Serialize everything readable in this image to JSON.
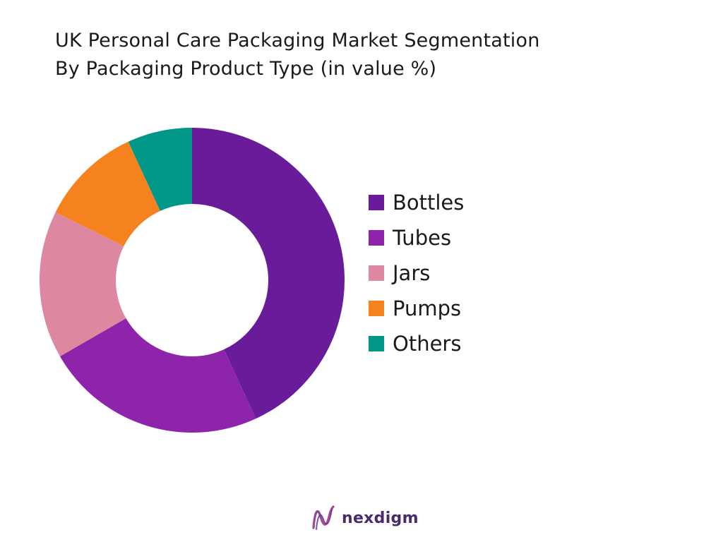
{
  "chart_data": {
    "type": "donut",
    "title_lines": [
      "UK Personal Care Packaging Market Segmentation",
      "By Packaging Product Type (in value %)"
    ],
    "categories": [
      "Bottles",
      "Tubes",
      "Jars",
      "Pumps",
      "Others"
    ],
    "values": [
      44,
      24,
      16,
      11,
      7
    ],
    "colors": [
      "#6a1b9a",
      "#8e24aa",
      "#de87a0",
      "#f5821f",
      "#009688"
    ],
    "legend_position": "right",
    "start_angle_deg": 0,
    "direction": "clockwise"
  },
  "brand": {
    "name": "nexdigm",
    "color": "#4a2a6e"
  }
}
